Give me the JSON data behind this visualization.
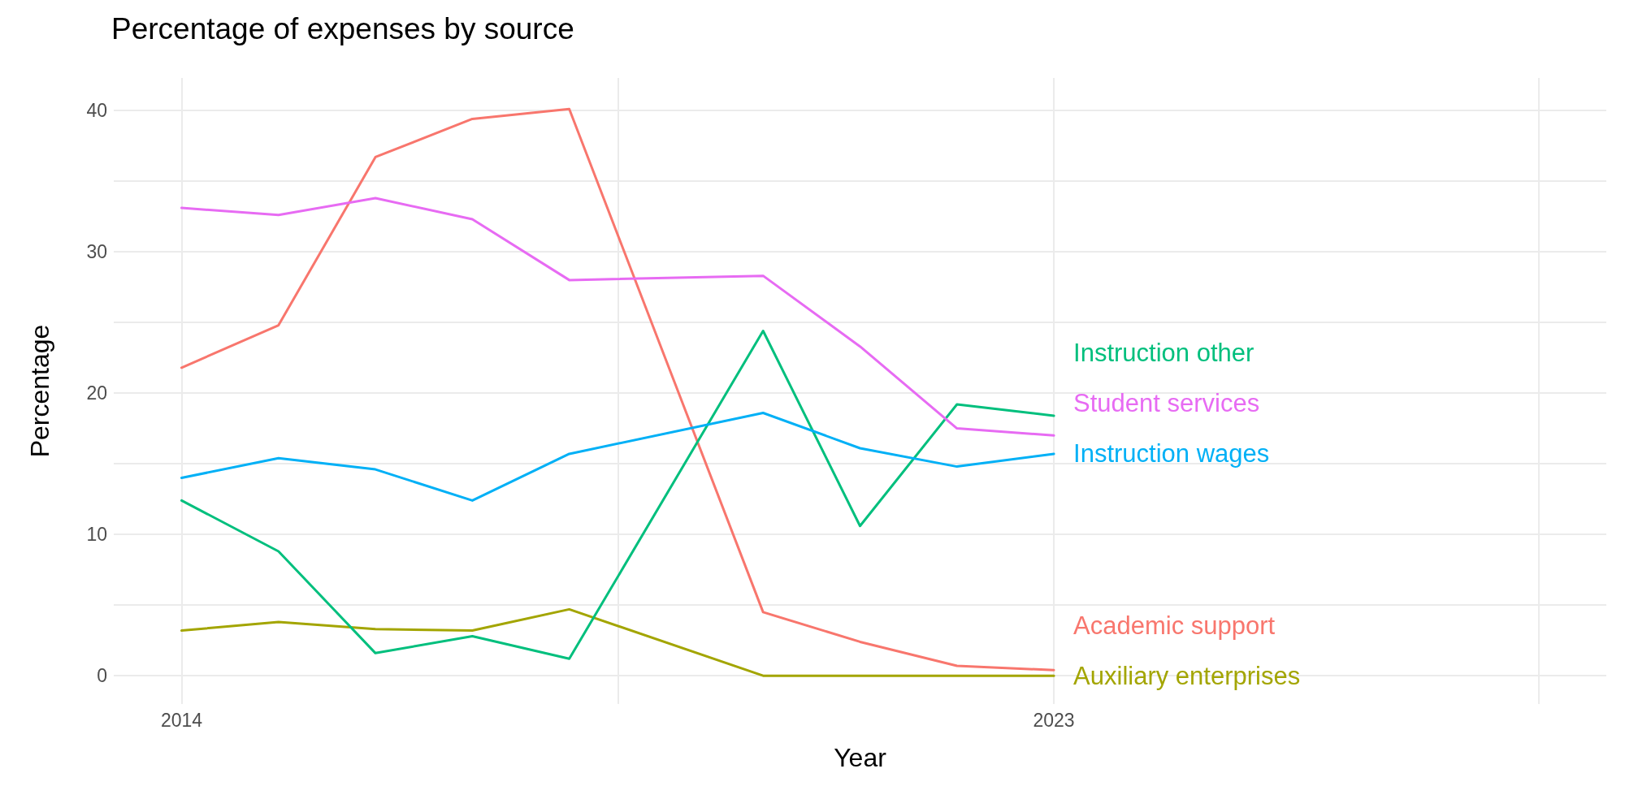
{
  "chart_data": {
    "type": "line",
    "title": "Percentage of expenses by source",
    "xlabel": "Year",
    "ylabel": "Percentage",
    "xlim": [
      2013.3,
      2028.7
    ],
    "xticks": [
      2014,
      {
        "value": 2018.5,
        "label": null
      },
      2023,
      {
        "value": 2028,
        "label": null
      }
    ],
    "ylim": [
      -2,
      42.3
    ],
    "yticks": [
      0,
      {
        "value": 5,
        "label": null
      },
      10,
      {
        "value": 15,
        "label": null
      },
      20,
      {
        "value": 25,
        "label": null
      },
      30,
      {
        "value": 35,
        "label": null
      },
      40
    ],
    "grid": true,
    "legend": false,
    "marker": "none",
    "line_style": "solid",
    "x": [
      2014,
      2015,
      2016,
      2017,
      2018,
      2020,
      2021,
      2022,
      2023
    ],
    "series": [
      {
        "name": "Academic support",
        "color": "#f8766d",
        "values": [
          21.8,
          24.8,
          36.7,
          39.4,
          40.1,
          4.5,
          2.4,
          0.7,
          0.4
        ]
      },
      {
        "name": "Auxiliary enterprises",
        "color": "#a3a500",
        "values": [
          3.2,
          3.8,
          3.3,
          3.2,
          4.7,
          0,
          0,
          0,
          0
        ]
      },
      {
        "name": "Instruction other",
        "color": "#00bf7d",
        "values": [
          12.4,
          8.8,
          1.6,
          2.8,
          1.2,
          24.4,
          10.6,
          19.2,
          18.4
        ]
      },
      {
        "name": "Instruction wages",
        "color": "#00b0f6",
        "values": [
          14.0,
          15.4,
          14.6,
          12.4,
          15.7,
          18.6,
          16.1,
          14.8,
          15.7
        ]
      },
      {
        "name": "Student services",
        "color": "#e76bf3",
        "values": [
          33.1,
          32.6,
          33.8,
          32.3,
          28.0,
          28.3,
          23.3,
          17.5,
          17.0
        ]
      }
    ]
  }
}
